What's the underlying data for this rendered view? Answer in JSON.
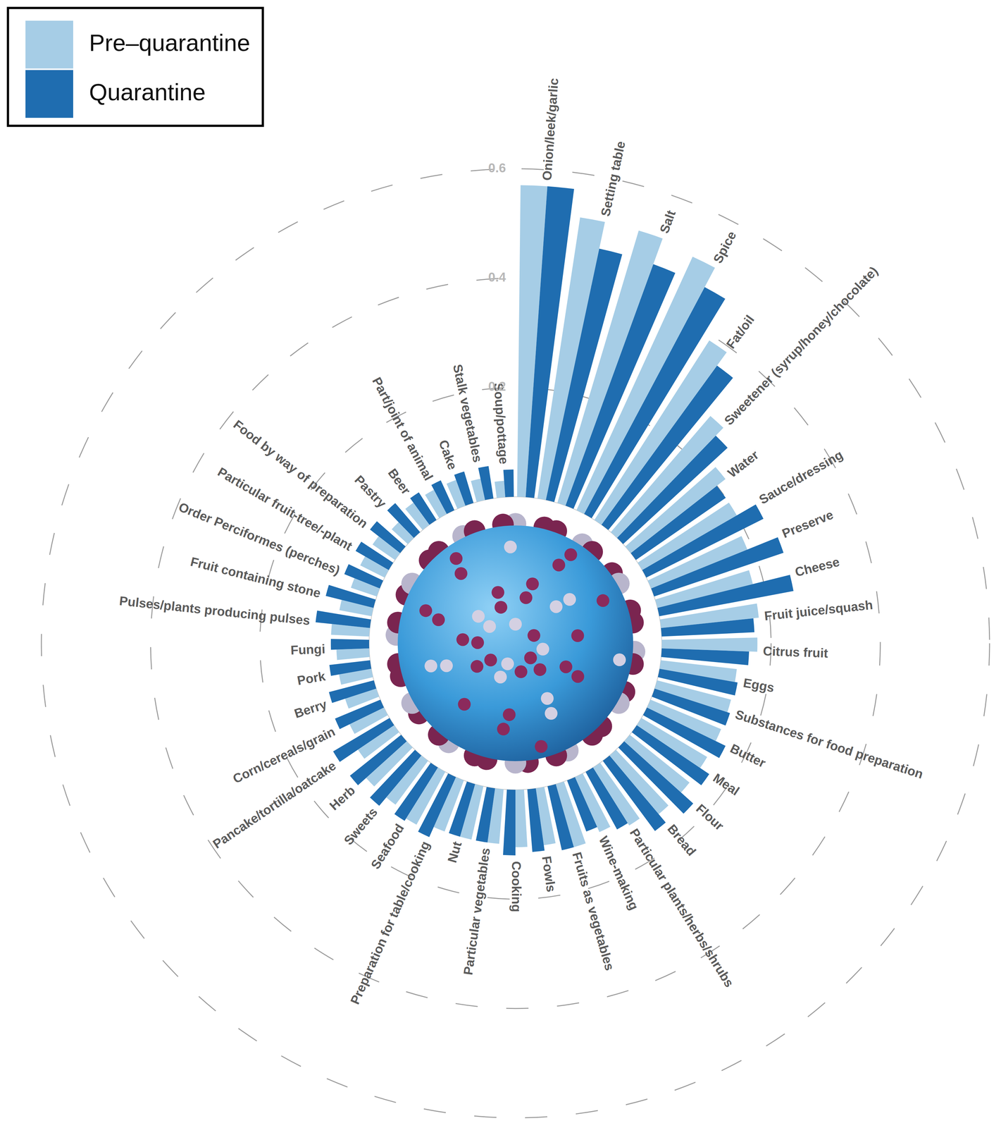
{
  "chart_data": {
    "type": "radial_bar",
    "categories": [
      "Onion/leek/garlic",
      "Setting table",
      "Salt",
      "Spice",
      "Fat/oil",
      "Sweetener (syrup/honey/chocolate)",
      "Water",
      "Sauce/dressing",
      "Preserve",
      "Cheese",
      "Fruit juice/squash",
      "Citrus fruit",
      "Eggs",
      "Substances for food preparation",
      "Butter",
      "Meal",
      "Flour",
      "Bread",
      "Particular plants/herbs/shrubs",
      "Wine-making",
      "Fruits as vegetables",
      "Fowls",
      "Cooking",
      "Particular vegetables",
      "Nut",
      "Preparation for table/cooking",
      "Seafood",
      "Sweets",
      "Herb",
      "Pancake/tortilla/oatcake",
      "Corn/cereals/grain",
      "Berry",
      "Pork",
      "Fungi",
      "Pulses/plants producing pulses",
      "Fruit containing stone",
      "Order Perciformes (perches)",
      "Particular fruit-tree/-plant",
      "Food by way of preparation",
      "Pastry",
      "Beer",
      "Part/joint of animal",
      "Cake",
      "Stalk vegetables",
      "Soup/pottage"
    ],
    "series": [
      {
        "name": "Pre–quarantine",
        "color": "#a6cde6",
        "values": [
          0.57,
          0.52,
          0.52,
          0.51,
          0.39,
          0.28,
          0.22,
          0.2,
          0.19,
          0.18,
          0.18,
          0.175,
          0.14,
          0.14,
          0.14,
          0.14,
          0.14,
          0.14,
          0.125,
          0.11,
          0.12,
          0.105,
          0.105,
          0.1,
          0.1,
          0.1,
          0.11,
          0.1,
          0.1,
          0.08,
          0.07,
          0.06,
          0.06,
          0.06,
          0.07,
          0.06,
          0.05,
          0.05,
          0.05,
          0.04,
          0.05,
          0.05,
          0.05,
          0.04,
          0.03
        ]
      },
      {
        "name": "Quarantine",
        "color": "#1f6db0",
        "values": [
          0.57,
          0.47,
          0.47,
          0.47,
          0.36,
          0.26,
          0.2,
          0.24,
          0.25,
          0.25,
          0.17,
          0.16,
          0.145,
          0.145,
          0.16,
          0.16,
          0.17,
          0.16,
          0.12,
          0.1,
          0.12,
          0.115,
          0.12,
          0.1,
          0.1,
          0.12,
          0.115,
          0.12,
          0.12,
          0.12,
          0.09,
          0.085,
          0.075,
          0.07,
          0.1,
          0.09,
          0.07,
          0.07,
          0.07,
          0.07,
          0.06,
          0.06,
          0.06,
          0.06,
          0.05
        ]
      }
    ],
    "ylim": [
      0,
      0.6
    ],
    "yticks": [
      0.2,
      0.4,
      0.6
    ],
    "grid": true,
    "legend": "top-left"
  }
}
